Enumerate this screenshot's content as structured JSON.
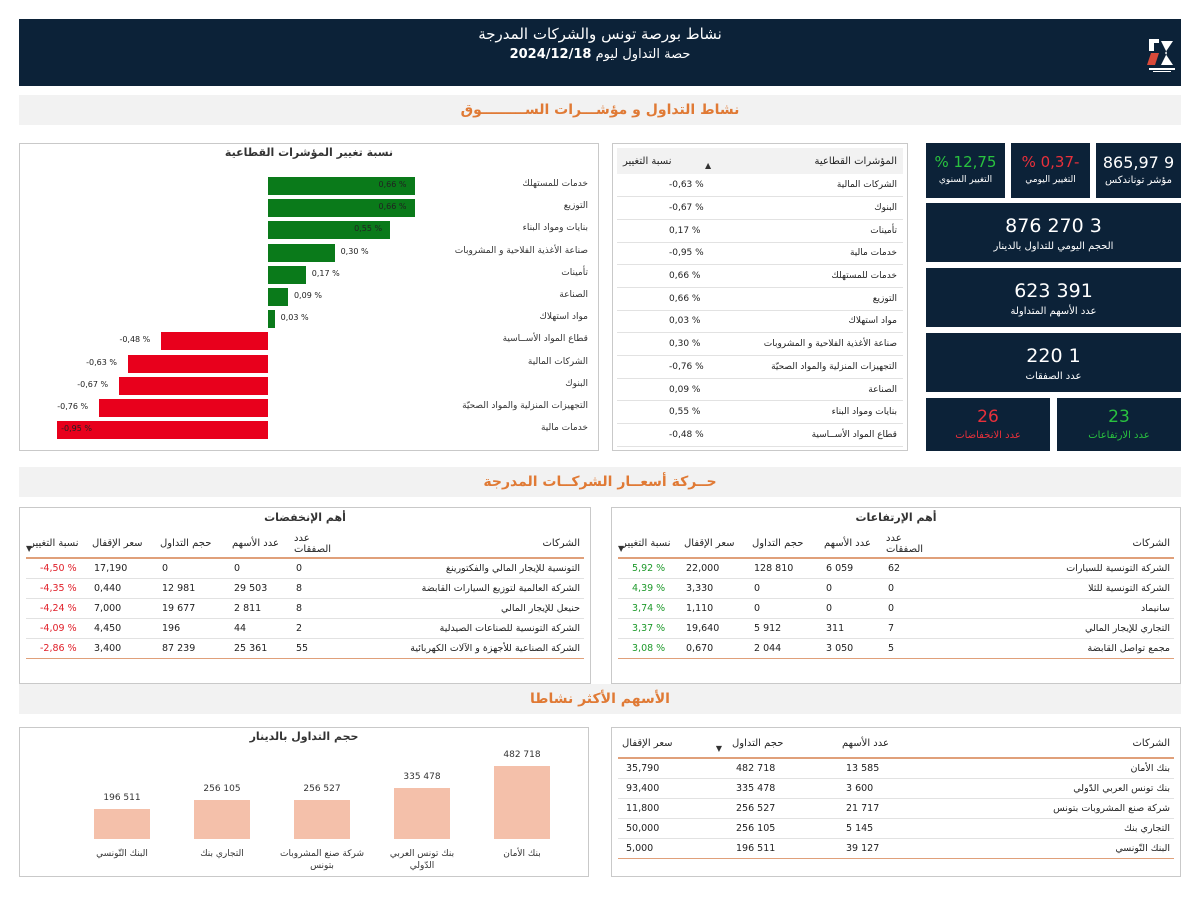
{
  "header": {
    "title": "نشاط بورصة تونس والشركات المدرجة",
    "subtitle_prefix": "حصة التداول ليوم",
    "date": "2024/12/18",
    "brand_color": "#0c2238"
  },
  "sections": {
    "market": "نشاط التداول و مؤشـــرات الســـــــــوق",
    "companies": "حــركة أسعــار الشركــات المدرجة",
    "most_active": "الأسهم الأكثر نشاطا"
  },
  "sector_chart": {
    "title": "نسبة تغيير المؤشرات القطاعية",
    "chart_data": {
      "type": "bar",
      "orientation": "horizontal",
      "title": "نسبة تغيير المؤشرات القطاعية",
      "categories": [
        "خدمات للمستهلك",
        "التوزيع",
        "بنايات ومواد البناء",
        "صناعة الأغذية الفلاحية و المشروبات",
        "تأمينات",
        "الصناعة",
        "مواد استهلاك",
        "قطاع المواد الأســاسية",
        "الشركات المالية",
        "البنوك",
        "التجهيزات المنزلية والمواد الصحيّة",
        "خدمات مالية"
      ],
      "values": [
        0.66,
        0.66,
        0.55,
        0.3,
        0.17,
        0.09,
        0.03,
        -0.48,
        -0.63,
        -0.67,
        -0.76,
        -0.95
      ],
      "labels": [
        "0,66 %",
        "0,66 %",
        "0,55 %",
        "0,30 %",
        "0,17 %",
        "0,09 %",
        "0,03 %",
        "-0,48 %",
        "-0,63 %",
        "-0,67 %",
        "-0,76 %",
        "-0,95 %"
      ],
      "colors": {
        "positive": "#0a7a1a",
        "negative": "#e8001c"
      }
    }
  },
  "sector_table": {
    "headers": [
      "المؤشرات القطاعية",
      "نسبة التغيير"
    ],
    "rows": [
      {
        "name": "الشركات المالية",
        "change": "-0,63 %",
        "dir": "neg"
      },
      {
        "name": "البنوك",
        "change": "-0,67 %",
        "dir": "neg"
      },
      {
        "name": "تأمينات",
        "change": "0,17 %",
        "dir": "pos"
      },
      {
        "name": "خدمات مالية",
        "change": "-0,95 %",
        "dir": "neg"
      },
      {
        "name": "خدمات للمستهلك",
        "change": "0,66 %",
        "dir": "pos"
      },
      {
        "name": "التوزيع",
        "change": "0,66 %",
        "dir": "pos"
      },
      {
        "name": "مواد استهلاك",
        "change": "0,03 %",
        "dir": "pos"
      },
      {
        "name": "صناعة الأغذية الفلاحية و المشروبات",
        "change": "0,30 %",
        "dir": "pos"
      },
      {
        "name": "التجهيزات المنزلية والمواد الصحيّة",
        "change": "-0,76 %",
        "dir": "neg"
      },
      {
        "name": "الصناعة",
        "change": "0,09 %",
        "dir": "pos"
      },
      {
        "name": "بنايات ومواد البناء",
        "change": "0,55 %",
        "dir": "pos"
      },
      {
        "name": "قطاع المواد الأســاسية",
        "change": "-0,48 %",
        "dir": "neg"
      }
    ]
  },
  "kpis": {
    "tunindex_value": "9 865,97",
    "tunindex_label": "مؤشر توناندكس",
    "daily_change_value": "-0,37 %",
    "daily_change_label": "التغيير اليومي",
    "annual_change_value": "12,75 %",
    "annual_change_label": "التغيير السنوي",
    "volume_value": "3 270 876",
    "volume_label": "الحجم اليومي للتداول بالدينار",
    "shares_value": "391 623",
    "shares_label": "عدد الأسهم المتداولة",
    "trades_value": "1 220",
    "trades_label": "عدد الصفقات",
    "rises_value": "23",
    "rises_label": "عدد الارتفاعات",
    "falls_value": "26",
    "falls_label": "عدد الانخفاضات",
    "colors": {
      "pos": "#29c23f",
      "neg": "#e8303b"
    }
  },
  "gainers": {
    "title": "أهم الإرتفاعات",
    "headers": [
      "الشركات",
      "عدد الصفقات",
      "عدد الأسهم",
      "حجم التداول",
      "سعر الإقفال",
      "نسبة التغيير"
    ],
    "rows": [
      [
        "الشركة التونسية للسيارات",
        "62",
        "6 059",
        "128 810",
        "22,000",
        "5,92 %"
      ],
      [
        "الشركة التونسية للثلا",
        "0",
        "0",
        "0",
        "3,330",
        "4,39 %"
      ],
      [
        "سانيماد",
        "0",
        "0",
        "0",
        "1,110",
        "3,74 %"
      ],
      [
        "التجاري للإيجار المالي",
        "7",
        "311",
        "5 912",
        "19,640",
        "3,37 %"
      ],
      [
        "مجمع تواصل القابضة",
        "5",
        "3 050",
        "2 044",
        "0,670",
        "3,08 %"
      ]
    ]
  },
  "losers": {
    "title": "أهم الإنخفضات",
    "headers": [
      "الشركات",
      "عدد الصفقات",
      "عدد الأسهم",
      "حجم التداول",
      "سعر الإقفال",
      "نسبة التغيير"
    ],
    "rows": [
      [
        "التونسية للإيجار المالي والفكتورينغ",
        "0",
        "0",
        "0",
        "17,190",
        "-4,50 %"
      ],
      [
        "الشركة العالمية لتوزيع السيارات القابضة",
        "8",
        "29 503",
        "12 981",
        "0,440",
        "-4,35 %"
      ],
      [
        "حنيعل للإيجار المالي",
        "8",
        "2 811",
        "19 677",
        "7,000",
        "-4,24 %"
      ],
      [
        "الشركة التونسية للصناعات الصيدلية",
        "2",
        "44",
        "196",
        "4,450",
        "-4,09 %"
      ],
      [
        "الشركة الصناعية للأجهزة و الآلات الكهربائية",
        "55",
        "25 361",
        "87 239",
        "3,400",
        "-2,86 %"
      ]
    ]
  },
  "active_chart": {
    "title": "حجم التداول بالدينار",
    "chart_data": {
      "type": "bar",
      "title": "حجم التداول بالدينار",
      "categories": [
        "بنك الأمان",
        "بنك تونس العربي الدّولي",
        "شركة صنع المشروبات بتونس",
        "التجاري بنك",
        "البنك التّونسي"
      ],
      "values": [
        482718,
        335478,
        256527,
        256105,
        196511
      ],
      "labels": [
        "482 718",
        "335 478",
        "256 527",
        "256 105",
        "196 511"
      ],
      "color": "#f4c0aa"
    }
  },
  "active_table": {
    "headers": [
      "الشركات",
      "عدد الأسهم",
      "حجم التداول",
      "سعر الإقفال"
    ],
    "rows": [
      [
        "بنك الأمان",
        "13 585",
        "482 718",
        "35,790"
      ],
      [
        "بنك تونس العربي الدّولي",
        "3 600",
        "335 478",
        "93,400"
      ],
      [
        "شركة صنع المشروبات بتونس",
        "21 717",
        "256 527",
        "11,800"
      ],
      [
        "التجاري بنك",
        "5 145",
        "256 105",
        "50,000"
      ],
      [
        "البنك التّونسي",
        "39 127",
        "196 511",
        "5,000"
      ]
    ]
  }
}
